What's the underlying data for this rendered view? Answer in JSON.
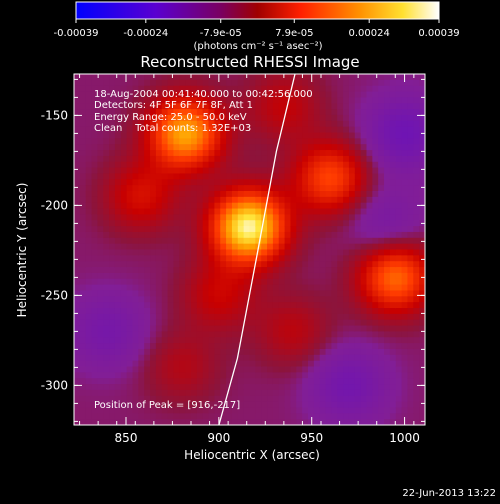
{
  "colorbar": {
    "tick_labels": [
      "-0.00039",
      "-0.00024",
      "-7.9e-05",
      "7.9e-05",
      "0.00024",
      "0.00039"
    ],
    "tick_values": [
      -0.00039,
      -0.00024,
      -7.9e-05,
      7.9e-05,
      0.00024,
      0.00039
    ],
    "range": [
      -0.00039,
      0.00039
    ],
    "unit_label": "(photons cm⁻² s⁻¹ asec⁻²)",
    "colormap": [
      "#0000ff",
      "#7a00c8",
      "#a00000",
      "#ff3000",
      "#ffb000",
      "#ffffff"
    ]
  },
  "chart_data": {
    "type": "heatmap",
    "title": "Reconstructed RHESSI Image",
    "xlabel": "Heliocentric X (arcsec)",
    "ylabel": "Heliocentric Y (arcsec)",
    "xlim": [
      822,
      1011
    ],
    "ylim": [
      -322,
      -127
    ],
    "x_ticks": [
      850,
      900,
      950,
      1000
    ],
    "y_ticks": [
      -150,
      -200,
      -250,
      -300
    ],
    "annotation_lines": [
      "18-Aug-2004 00:41:40.000 to 00:42:56.000",
      "Detectors: 4F 5F 6F 7F 8F, Att 1",
      "Energy Range: 25.0 - 50.0 keV",
      "Clean    Total counts: 1.32E+03"
    ],
    "peak_label": "Position of Peak = [916,-217]",
    "peak": [
      916,
      -217
    ],
    "limb_curve_label": "",
    "limb_curve": [
      [
        900,
        -322
      ],
      [
        910,
        -285
      ],
      [
        921,
        -225
      ],
      [
        931,
        -170
      ],
      [
        941,
        -127
      ]
    ],
    "sources": [
      {
        "x": 916,
        "y": -212,
        "intensity": 0.00039
      },
      {
        "x": 882,
        "y": -160,
        "intensity": 0.0003
      },
      {
        "x": 960,
        "y": -185,
        "intensity": 0.0002
      },
      {
        "x": 995,
        "y": -240,
        "intensity": 0.00024
      },
      {
        "x": 858,
        "y": -195,
        "intensity": 0.00012
      },
      {
        "x": 900,
        "y": -250,
        "intensity": 0.0001
      },
      {
        "x": 940,
        "y": -270,
        "intensity": 8e-05
      },
      {
        "x": 880,
        "y": -290,
        "intensity": 7e-05
      },
      {
        "x": 935,
        "y": -145,
        "intensity": 9e-05
      },
      {
        "x": 1000,
        "y": -160,
        "intensity": -0.00015
      },
      {
        "x": 840,
        "y": -270,
        "intensity": -0.0001
      },
      {
        "x": 970,
        "y": -300,
        "intensity": -0.00012
      },
      {
        "x": 990,
        "y": -210,
        "intensity": -8e-05
      }
    ]
  },
  "timestamp": "22-Jun-2013 13:22"
}
